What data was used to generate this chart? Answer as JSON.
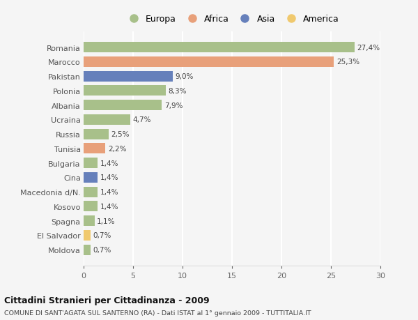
{
  "title": "Cittadini Stranieri per Cittadinanza - 2009",
  "subtitle": "COMUNE DI SANT'AGATA SUL SANTERNO (RA) - Dati ISTAT al 1° gennaio 2009 - TUTTITALIA.IT",
  "legend_labels": [
    "Europa",
    "Africa",
    "Asia",
    "America"
  ],
  "legend_colors": [
    "#a8c08a",
    "#e8a07a",
    "#6680bb",
    "#f0c96e"
  ],
  "categories": [
    "Romania",
    "Marocco",
    "Pakistan",
    "Polonia",
    "Albania",
    "Ucraina",
    "Russia",
    "Tunisia",
    "Bulgaria",
    "Cina",
    "Macedonia d/N.",
    "Kosovo",
    "Spagna",
    "El Salvador",
    "Moldova"
  ],
  "values": [
    27.4,
    25.3,
    9.0,
    8.3,
    7.9,
    4.7,
    2.5,
    2.2,
    1.4,
    1.4,
    1.4,
    1.4,
    1.1,
    0.7,
    0.7
  ],
  "colors": [
    "#a8c08a",
    "#e8a07a",
    "#6680bb",
    "#a8c08a",
    "#a8c08a",
    "#a8c08a",
    "#a8c08a",
    "#e8a07a",
    "#a8c08a",
    "#6680bb",
    "#a8c08a",
    "#a8c08a",
    "#a8c08a",
    "#f0c96e",
    "#a8c08a"
  ],
  "label_texts": [
    "27,4%",
    "25,3%",
    "9,0%",
    "8,3%",
    "7,9%",
    "4,7%",
    "2,5%",
    "2,2%",
    "1,4%",
    "1,4%",
    "1,4%",
    "1,4%",
    "1,1%",
    "0,7%",
    "0,7%"
  ],
  "xlim": [
    0,
    30
  ],
  "xticks": [
    0,
    5,
    10,
    15,
    20,
    25,
    30
  ],
  "background_color": "#f5f5f5",
  "grid_color": "#ffffff",
  "bar_height": 0.72
}
